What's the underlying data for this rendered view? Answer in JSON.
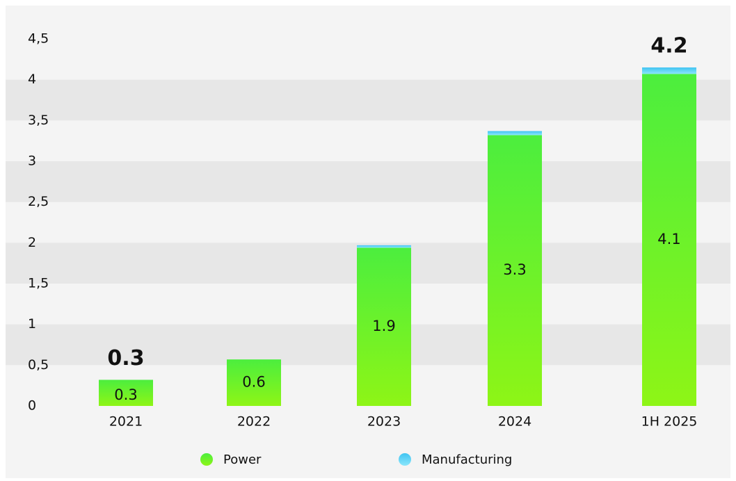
{
  "chart_data": {
    "type": "stacked_bar",
    "categories": [
      "2021",
      "2022",
      "2023",
      "2024",
      "1H 2025"
    ],
    "series": [
      {
        "name": "Power",
        "color": "#6cf22a",
        "values": [
          0.32,
          0.57,
          1.94,
          3.32,
          4.07
        ],
        "value_labels": [
          "0.3",
          "0.6",
          "1.9",
          "3.3",
          "4.1"
        ]
      },
      {
        "name": "Manufacturing",
        "color": "#5ed4f6",
        "values": [
          0,
          0,
          0.03,
          0.05,
          0.08
        ]
      }
    ],
    "totals": [
      0.32,
      null,
      null,
      null,
      4.15
    ],
    "total_labels": [
      "0.3",
      null,
      null,
      null,
      "4.2"
    ],
    "ylim": [
      0,
      4.5
    ],
    "yticks": [
      0,
      {
        "value": 0.5,
        "label": "0,5"
      },
      1,
      {
        "value": 1.5,
        "label": "1,5"
      },
      2,
      {
        "value": 2.5,
        "label": "2,5"
      },
      3,
      {
        "value": 3.5,
        "label": "3,5"
      },
      4,
      {
        "value": 4.5,
        "label": "4,5"
      }
    ],
    "grid": "bands",
    "legend": "bottom"
  }
}
